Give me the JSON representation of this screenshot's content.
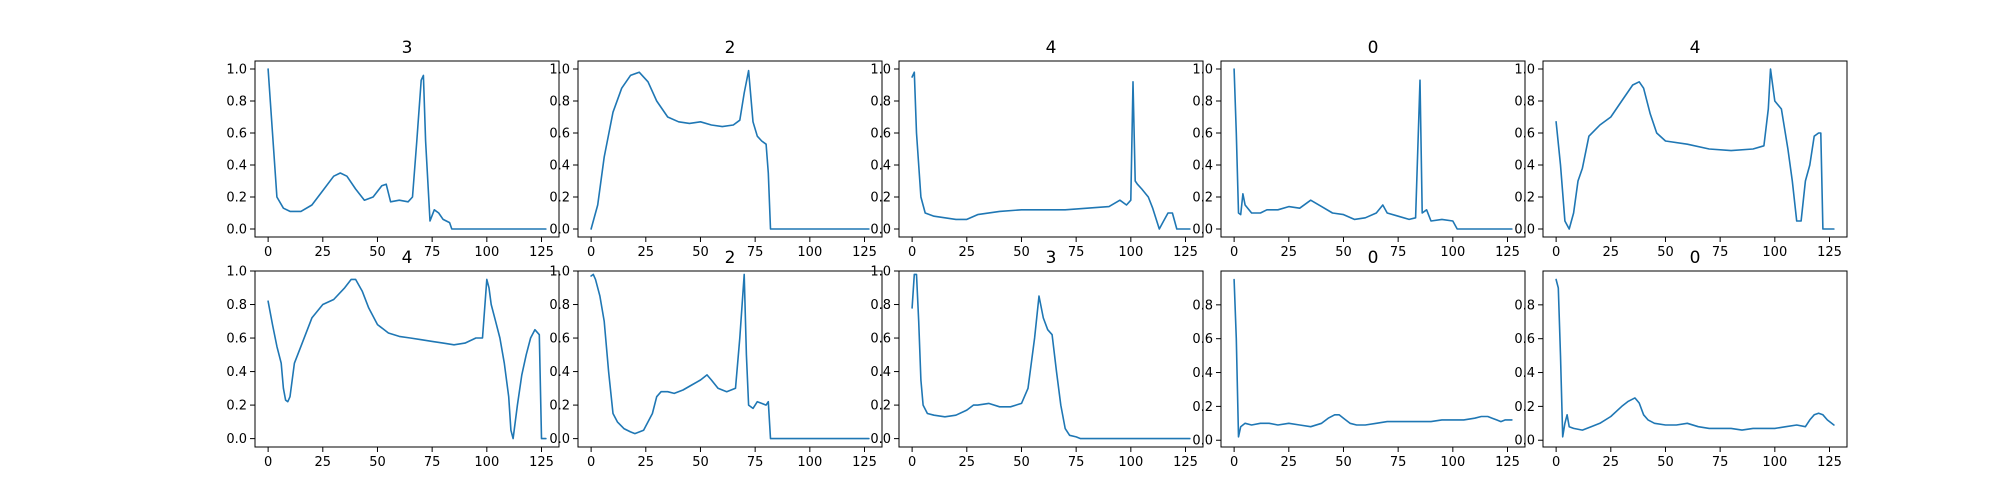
{
  "figure": {
    "background": "#ffffff",
    "line_color": "#1f77b4"
  },
  "chart_data": [
    {
      "type": "line",
      "title": "3",
      "xlim": [
        -6,
        133
      ],
      "ylim": [
        -0.05,
        1.05
      ],
      "xticks": [
        0,
        25,
        50,
        75,
        100,
        125
      ],
      "yticks": [
        0.0,
        0.2,
        0.4,
        0.6,
        0.8,
        1.0
      ],
      "xtick_labels": [
        "0",
        "25",
        "50",
        "75",
        "100",
        "125"
      ],
      "ytick_labels": [
        "0.0",
        "0.2",
        "0.4",
        "0.6",
        "0.8",
        "1.0"
      ],
      "x": [
        0,
        2,
        4,
        7,
        10,
        15,
        20,
        25,
        30,
        33,
        36,
        40,
        44,
        48,
        52,
        54,
        56,
        60,
        64,
        66,
        68,
        70,
        71,
        72,
        74,
        76,
        78,
        80,
        83,
        84,
        87,
        127
      ],
      "y": [
        1.0,
        0.6,
        0.2,
        0.13,
        0.11,
        0.11,
        0.15,
        0.24,
        0.33,
        0.35,
        0.33,
        0.25,
        0.18,
        0.2,
        0.27,
        0.28,
        0.17,
        0.18,
        0.17,
        0.2,
        0.55,
        0.93,
        0.96,
        0.55,
        0.05,
        0.12,
        0.1,
        0.06,
        0.04,
        0.0,
        0.0,
        0.0
      ]
    },
    {
      "type": "line",
      "title": "2",
      "xlim": [
        -6,
        133
      ],
      "ylim": [
        -0.05,
        1.05
      ],
      "xticks": [
        0,
        25,
        50,
        75,
        100,
        125
      ],
      "yticks": [
        0.0,
        0.2,
        0.4,
        0.6,
        0.8,
        1.0
      ],
      "xtick_labels": [
        "0",
        "25",
        "50",
        "75",
        "100",
        "125"
      ],
      "ytick_labels": [
        "0.0",
        "0.2",
        "0.4",
        "0.6",
        "0.8",
        "1.0"
      ],
      "x": [
        0,
        3,
        6,
        10,
        14,
        18,
        22,
        26,
        30,
        35,
        40,
        45,
        50,
        55,
        60,
        65,
        68,
        70,
        72,
        74,
        76,
        78,
        80,
        81,
        82,
        127
      ],
      "y": [
        0.0,
        0.15,
        0.45,
        0.73,
        0.88,
        0.96,
        0.98,
        0.92,
        0.8,
        0.7,
        0.67,
        0.66,
        0.67,
        0.65,
        0.64,
        0.65,
        0.68,
        0.85,
        0.99,
        0.67,
        0.58,
        0.55,
        0.53,
        0.35,
        0.0,
        0.0
      ]
    },
    {
      "type": "line",
      "title": "4",
      "xlim": [
        -6,
        133
      ],
      "ylim": [
        -0.05,
        1.05
      ],
      "xticks": [
        0,
        25,
        50,
        75,
        100,
        125
      ],
      "yticks": [
        0.0,
        0.2,
        0.4,
        0.6,
        0.8,
        1.0
      ],
      "xtick_labels": [
        "0",
        "25",
        "50",
        "75",
        "100",
        "125"
      ],
      "ytick_labels": [
        "0.0",
        "0.2",
        "0.4",
        "0.6",
        "0.8",
        "1.0"
      ],
      "x": [
        0,
        1,
        2,
        4,
        6,
        10,
        20,
        25,
        30,
        40,
        50,
        60,
        70,
        80,
        90,
        95,
        98,
        100,
        101,
        102,
        103,
        105,
        108,
        110,
        113,
        115,
        117,
        119,
        121,
        122,
        123,
        127
      ],
      "y": [
        0.95,
        0.98,
        0.6,
        0.2,
        0.1,
        0.08,
        0.06,
        0.06,
        0.09,
        0.11,
        0.12,
        0.12,
        0.12,
        0.13,
        0.14,
        0.18,
        0.15,
        0.18,
        0.92,
        0.3,
        0.28,
        0.25,
        0.2,
        0.13,
        0.0,
        0.05,
        0.1,
        0.1,
        0.0,
        0.0,
        0.0,
        0.0
      ]
    },
    {
      "type": "line",
      "title": "0",
      "xlim": [
        -6,
        133
      ],
      "ylim": [
        -0.05,
        1.05
      ],
      "xticks": [
        0,
        25,
        50,
        75,
        100,
        125
      ],
      "yticks": [
        0.0,
        0.2,
        0.4,
        0.6,
        0.8,
        1.0
      ],
      "xtick_labels": [
        "0",
        "25",
        "50",
        "75",
        "100",
        "125"
      ],
      "ytick_labels": [
        "0.0",
        "0.2",
        "0.4",
        "0.6",
        "0.8",
        "1.0"
      ],
      "x": [
        0,
        1,
        2,
        3,
        4,
        5,
        8,
        12,
        15,
        20,
        25,
        30,
        35,
        40,
        45,
        50,
        55,
        60,
        65,
        68,
        70,
        75,
        80,
        83,
        84,
        85,
        86,
        88,
        90,
        95,
        100,
        102,
        103,
        127
      ],
      "y": [
        1.0,
        0.6,
        0.1,
        0.09,
        0.22,
        0.15,
        0.1,
        0.1,
        0.12,
        0.12,
        0.14,
        0.13,
        0.18,
        0.14,
        0.1,
        0.09,
        0.06,
        0.07,
        0.1,
        0.15,
        0.1,
        0.08,
        0.06,
        0.07,
        0.5,
        0.93,
        0.1,
        0.12,
        0.05,
        0.06,
        0.05,
        0.0,
        0.0,
        0.0
      ]
    },
    {
      "type": "line",
      "title": "4",
      "xlim": [
        -6,
        133
      ],
      "ylim": [
        -0.05,
        1.05
      ],
      "xticks": [
        0,
        25,
        50,
        75,
        100,
        125
      ],
      "yticks": [
        0.0,
        0.2,
        0.4,
        0.6,
        0.8,
        1.0
      ],
      "xtick_labels": [
        "0",
        "25",
        "50",
        "75",
        "100",
        "125"
      ],
      "ytick_labels": [
        "0.0",
        "0.2",
        "0.4",
        "0.6",
        "0.8",
        "1.0"
      ],
      "x": [
        0,
        2,
        4,
        6,
        8,
        10,
        12,
        15,
        20,
        25,
        30,
        35,
        38,
        40,
        43,
        46,
        50,
        60,
        70,
        80,
        90,
        95,
        97,
        98,
        100,
        103,
        106,
        108,
        110,
        112,
        114,
        116,
        118,
        120,
        121,
        122,
        127
      ],
      "y": [
        0.67,
        0.4,
        0.05,
        0.0,
        0.1,
        0.3,
        0.38,
        0.58,
        0.65,
        0.7,
        0.8,
        0.9,
        0.92,
        0.88,
        0.72,
        0.6,
        0.55,
        0.53,
        0.5,
        0.49,
        0.5,
        0.52,
        0.75,
        1.0,
        0.8,
        0.75,
        0.5,
        0.3,
        0.05,
        0.05,
        0.3,
        0.4,
        0.58,
        0.6,
        0.6,
        0.0,
        0.0
      ]
    },
    {
      "type": "line",
      "title": "4",
      "xlim": [
        -6,
        133
      ],
      "ylim": [
        -0.05,
        1.0
      ],
      "xticks": [
        0,
        25,
        50,
        75,
        100,
        125
      ],
      "yticks": [
        0.0,
        0.2,
        0.4,
        0.6,
        0.8,
        1.0
      ],
      "xtick_labels": [
        "0",
        "25",
        "50",
        "75",
        "100",
        "125"
      ],
      "ytick_labels": [
        "0.0",
        "0.2",
        "0.4",
        "0.6",
        "0.8",
        "1.0"
      ],
      "x": [
        0,
        2,
        4,
        6,
        7,
        8,
        9,
        10,
        12,
        15,
        20,
        25,
        30,
        35,
        38,
        40,
        43,
        46,
        50,
        55,
        60,
        65,
        70,
        75,
        80,
        85,
        90,
        95,
        98,
        100,
        101,
        102,
        104,
        106,
        108,
        110,
        111,
        112,
        114,
        116,
        118,
        120,
        122,
        124,
        125,
        127
      ],
      "y": [
        0.82,
        0.68,
        0.55,
        0.45,
        0.3,
        0.23,
        0.22,
        0.25,
        0.45,
        0.55,
        0.72,
        0.8,
        0.83,
        0.9,
        0.95,
        0.95,
        0.88,
        0.78,
        0.68,
        0.63,
        0.61,
        0.6,
        0.59,
        0.58,
        0.57,
        0.56,
        0.57,
        0.6,
        0.6,
        0.95,
        0.9,
        0.8,
        0.7,
        0.6,
        0.45,
        0.25,
        0.05,
        0.0,
        0.2,
        0.38,
        0.5,
        0.6,
        0.65,
        0.62,
        0.0,
        0.0
      ]
    },
    {
      "type": "line",
      "title": "2",
      "xlim": [
        -6,
        133
      ],
      "ylim": [
        -0.05,
        1.0
      ],
      "xticks": [
        0,
        25,
        50,
        75,
        100,
        125
      ],
      "yticks": [
        0.0,
        0.2,
        0.4,
        0.6,
        0.8,
        1.0
      ],
      "xtick_labels": [
        "0",
        "25",
        "50",
        "75",
        "100",
        "125"
      ],
      "ytick_labels": [
        "0.0",
        "0.2",
        "0.4",
        "0.6",
        "0.8",
        "1.0"
      ],
      "x": [
        0,
        1,
        2,
        4,
        6,
        8,
        10,
        12,
        15,
        18,
        20,
        24,
        28,
        30,
        32,
        35,
        38,
        42,
        46,
        50,
        53,
        55,
        58,
        62,
        66,
        68,
        70,
        71,
        72,
        74,
        76,
        78,
        80,
        81,
        82,
        127
      ],
      "y": [
        0.97,
        0.98,
        0.95,
        0.85,
        0.7,
        0.4,
        0.15,
        0.1,
        0.06,
        0.04,
        0.03,
        0.05,
        0.15,
        0.25,
        0.28,
        0.28,
        0.27,
        0.29,
        0.32,
        0.35,
        0.38,
        0.35,
        0.3,
        0.28,
        0.3,
        0.6,
        0.98,
        0.5,
        0.2,
        0.18,
        0.22,
        0.21,
        0.2,
        0.22,
        0.0,
        0.0
      ]
    },
    {
      "type": "line",
      "title": "3",
      "xlim": [
        -6,
        133
      ],
      "ylim": [
        -0.05,
        1.0
      ],
      "xticks": [
        0,
        25,
        50,
        75,
        100,
        125
      ],
      "yticks": [
        0.0,
        0.2,
        0.4,
        0.6,
        0.8,
        1.0
      ],
      "xtick_labels": [
        "0",
        "25",
        "50",
        "75",
        "100",
        "125"
      ],
      "ytick_labels": [
        "0.0",
        "0.2",
        "0.4",
        "0.6",
        "0.8",
        "1.0"
      ],
      "x": [
        0,
        1,
        2,
        3,
        4,
        5,
        7,
        10,
        15,
        20,
        25,
        28,
        30,
        35,
        40,
        45,
        50,
        53,
        56,
        58,
        60,
        62,
        64,
        66,
        68,
        70,
        72,
        75,
        77,
        80,
        127
      ],
      "y": [
        0.78,
        0.98,
        0.98,
        0.7,
        0.35,
        0.2,
        0.15,
        0.14,
        0.13,
        0.14,
        0.17,
        0.2,
        0.2,
        0.21,
        0.19,
        0.19,
        0.21,
        0.3,
        0.6,
        0.85,
        0.72,
        0.65,
        0.62,
        0.4,
        0.2,
        0.06,
        0.02,
        0.01,
        0.0,
        0.0,
        0.0
      ]
    },
    {
      "type": "line",
      "title": "0",
      "xlim": [
        -6,
        133
      ],
      "ylim": [
        -0.04,
        1.0
      ],
      "xticks": [
        0,
        25,
        50,
        75,
        100,
        125
      ],
      "yticks": [
        0.0,
        0.2,
        0.4,
        0.6,
        0.8
      ],
      "xtick_labels": [
        "0",
        "25",
        "50",
        "75",
        "100",
        "125"
      ],
      "ytick_labels": [
        "0.0",
        "0.2",
        "0.4",
        "0.6",
        "0.8"
      ],
      "x": [
        0,
        1,
        2,
        3,
        5,
        8,
        12,
        16,
        20,
        25,
        30,
        35,
        40,
        43,
        46,
        48,
        50,
        53,
        56,
        60,
        65,
        70,
        75,
        80,
        85,
        90,
        95,
        100,
        105,
        110,
        113,
        116,
        118,
        120,
        122,
        124,
        127
      ],
      "y": [
        0.95,
        0.6,
        0.02,
        0.08,
        0.1,
        0.09,
        0.1,
        0.1,
        0.09,
        0.1,
        0.09,
        0.08,
        0.1,
        0.13,
        0.15,
        0.15,
        0.13,
        0.1,
        0.09,
        0.09,
        0.1,
        0.11,
        0.11,
        0.11,
        0.11,
        0.11,
        0.12,
        0.12,
        0.12,
        0.13,
        0.14,
        0.14,
        0.13,
        0.12,
        0.11,
        0.12,
        0.12
      ]
    },
    {
      "type": "line",
      "title": "0",
      "xlim": [
        -6,
        133
      ],
      "ylim": [
        -0.04,
        1.0
      ],
      "xticks": [
        0,
        25,
        50,
        75,
        100,
        125
      ],
      "yticks": [
        0.0,
        0.2,
        0.4,
        0.6,
        0.8
      ],
      "xtick_labels": [
        "0",
        "25",
        "50",
        "75",
        "100",
        "125"
      ],
      "ytick_labels": [
        "0.0",
        "0.2",
        "0.4",
        "0.6",
        "0.8"
      ],
      "x": [
        0,
        1,
        2,
        3,
        4,
        5,
        6,
        8,
        12,
        16,
        20,
        25,
        30,
        33,
        36,
        38,
        40,
        42,
        45,
        50,
        55,
        60,
        65,
        70,
        75,
        80,
        85,
        90,
        95,
        100,
        105,
        110,
        114,
        116,
        118,
        120,
        122,
        124,
        127
      ],
      "y": [
        0.95,
        0.9,
        0.5,
        0.02,
        0.1,
        0.15,
        0.08,
        0.07,
        0.06,
        0.08,
        0.1,
        0.14,
        0.2,
        0.23,
        0.25,
        0.22,
        0.15,
        0.12,
        0.1,
        0.09,
        0.09,
        0.1,
        0.08,
        0.07,
        0.07,
        0.07,
        0.06,
        0.07,
        0.07,
        0.07,
        0.08,
        0.09,
        0.08,
        0.12,
        0.15,
        0.16,
        0.15,
        0.12,
        0.09
      ]
    }
  ]
}
